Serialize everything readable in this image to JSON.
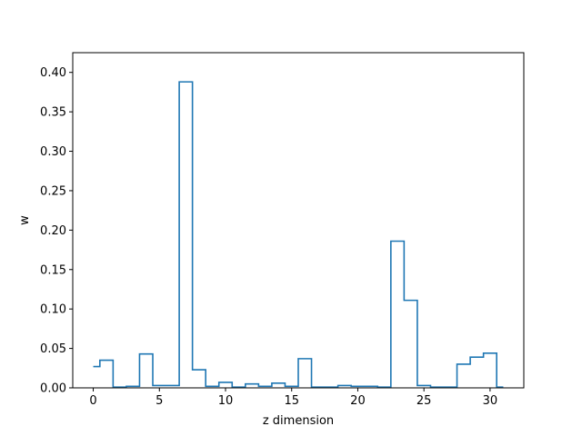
{
  "chart_data": {
    "type": "line",
    "style": "step",
    "title": "",
    "xlabel": "z dimension",
    "ylabel": "w",
    "xlim": [
      -1.55,
      32.55
    ],
    "ylim": [
      0.0,
      0.425
    ],
    "xticks": [
      0,
      5,
      10,
      15,
      20,
      25,
      30
    ],
    "yticks": [
      0.0,
      0.05,
      0.1,
      0.15,
      0.2,
      0.25,
      0.3,
      0.35,
      0.4
    ],
    "ytick_labels": [
      "0.00",
      "0.05",
      "0.10",
      "0.15",
      "0.20",
      "0.25",
      "0.30",
      "0.35",
      "0.40"
    ],
    "grid": false,
    "line_color": "#1f77b4",
    "x": [
      0,
      1,
      2,
      3,
      4,
      5,
      6,
      7,
      8,
      9,
      10,
      11,
      12,
      13,
      14,
      15,
      16,
      17,
      18,
      19,
      20,
      21,
      22,
      23,
      24,
      25,
      26,
      27,
      28,
      29,
      30,
      31
    ],
    "values": [
      0.027,
      0.035,
      0.001,
      0.002,
      0.043,
      0.003,
      0.003,
      0.388,
      0.023,
      0.002,
      0.007,
      0.001,
      0.005,
      0.002,
      0.006,
      0.002,
      0.037,
      0.001,
      0.001,
      0.003,
      0.002,
      0.002,
      0.001,
      0.186,
      0.111,
      0.003,
      0.001,
      0.001,
      0.03,
      0.039,
      0.044,
      0.001
    ]
  }
}
